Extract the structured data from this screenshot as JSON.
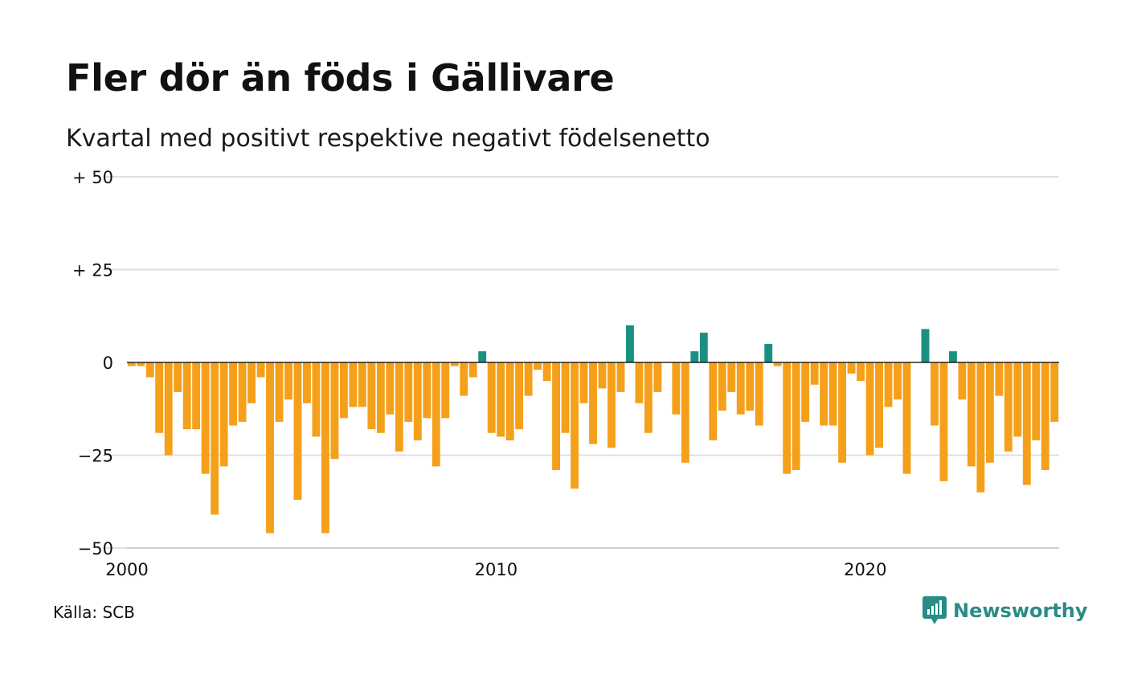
{
  "title": "Fler dör än föds i Gällivare",
  "subtitle": "Kvartal med positivt respektive negativt födelsenetto",
  "source": "Källa: SCB",
  "brand": "Newsworthy",
  "colors": {
    "negative": "#f5a01a",
    "positive": "#1a9082",
    "grid": "#e0e0e0",
    "axis": "#000000"
  },
  "chart_data": {
    "type": "bar",
    "title": "Fler dör än föds i Gällivare",
    "subtitle": "Kvartal med positivt respektive negativt födelsenetto",
    "xlabel": "",
    "ylabel": "",
    "ylim": [
      -50,
      50
    ],
    "yticks": [
      50,
      25,
      0,
      -25,
      -50
    ],
    "ytick_labels": [
      "+ 50",
      "+ 25",
      "0",
      "−25",
      "−50"
    ],
    "xlim": [
      2000,
      2025.25
    ],
    "xticks": [
      2000,
      2010,
      2020
    ],
    "xtick_labels": [
      "2000",
      "2010",
      "2020"
    ],
    "grid": true,
    "start_period": "2000 Q1",
    "values": [
      -1,
      -1,
      -4,
      -19,
      -25,
      -8,
      -18,
      -18,
      -30,
      -41,
      -28,
      -17,
      -16,
      -11,
      -4,
      -46,
      -16,
      -10,
      -37,
      -11,
      -20,
      -46,
      -26,
      -15,
      -12,
      -12,
      -18,
      -19,
      -14,
      -24,
      -16,
      -21,
      -15,
      -28,
      -15,
      -1,
      -9,
      -4,
      3,
      -19,
      -20,
      -21,
      -18,
      -9,
      -2,
      -5,
      -29,
      -19,
      -34,
      -11,
      -22,
      -7,
      -23,
      -8,
      10,
      -11,
      -19,
      -8,
      0,
      -14,
      -27,
      3,
      8,
      -21,
      -13,
      -8,
      -14,
      -13,
      -17,
      5,
      -1,
      -30,
      -29,
      -16,
      -6,
      -17,
      -17,
      -27,
      -3,
      -5,
      -25,
      -23,
      -12,
      -10,
      -30,
      0,
      9,
      -17,
      -32,
      3,
      -10,
      -28,
      -35,
      -27,
      -9,
      -24,
      -20,
      -33,
      -21,
      -29,
      -16
    ]
  }
}
